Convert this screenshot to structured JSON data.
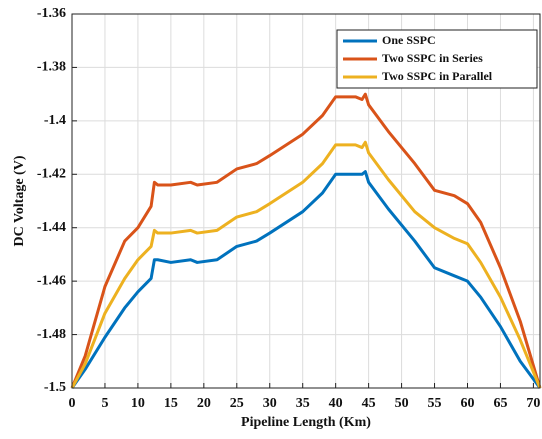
{
  "chart_data": {
    "type": "line",
    "xlabel": "Pipeline Length (Km)",
    "ylabel": "DC Voltage (V)",
    "x": [
      0,
      2,
      5,
      8,
      10,
      12,
      12.5,
      13,
      15,
      18,
      19,
      22,
      25,
      28,
      30,
      35,
      38,
      40,
      43,
      44,
      44.5,
      45,
      48,
      52,
      55,
      58,
      60,
      62,
      65,
      68,
      71
    ],
    "series": [
      {
        "name": "One SSPC",
        "color": "#0072BD",
        "values": [
          -1.5,
          -1.493,
          -1.481,
          -1.47,
          -1.464,
          -1.459,
          -1.452,
          -1.452,
          -1.453,
          -1.452,
          -1.453,
          -1.452,
          -1.447,
          -1.445,
          -1.442,
          -1.434,
          -1.427,
          -1.42,
          -1.42,
          -1.42,
          -1.419,
          -1.423,
          -1.433,
          -1.445,
          -1.455,
          -1.458,
          -1.46,
          -1.466,
          -1.477,
          -1.49,
          -1.5
        ]
      },
      {
        "name": "Two SSPC in Series",
        "color": "#D95319",
        "values": [
          -1.5,
          -1.488,
          -1.462,
          -1.445,
          -1.44,
          -1.432,
          -1.423,
          -1.424,
          -1.424,
          -1.423,
          -1.424,
          -1.423,
          -1.418,
          -1.416,
          -1.413,
          -1.405,
          -1.398,
          -1.391,
          -1.391,
          -1.392,
          -1.39,
          -1.394,
          -1.404,
          -1.416,
          -1.426,
          -1.428,
          -1.431,
          -1.438,
          -1.455,
          -1.475,
          -1.5
        ]
      },
      {
        "name": "Two SSPC in Parallel",
        "color": "#EDB120",
        "values": [
          -1.5,
          -1.491,
          -1.472,
          -1.459,
          -1.452,
          -1.447,
          -1.441,
          -1.442,
          -1.442,
          -1.441,
          -1.442,
          -1.441,
          -1.436,
          -1.434,
          -1.431,
          -1.423,
          -1.416,
          -1.409,
          -1.409,
          -1.41,
          -1.408,
          -1.412,
          -1.422,
          -1.434,
          -1.44,
          -1.444,
          -1.446,
          -1.453,
          -1.466,
          -1.482,
          -1.5
        ]
      }
    ],
    "xlim": [
      0,
      71
    ],
    "xticks": [
      0,
      5,
      10,
      15,
      20,
      25,
      30,
      35,
      40,
      45,
      50,
      55,
      60,
      65,
      70
    ],
    "ylim": [
      -1.5,
      -1.36
    ],
    "yticks": [
      -1.5,
      -1.48,
      -1.46,
      -1.44,
      -1.42,
      -1.4,
      -1.38,
      -1.36
    ],
    "grid": true,
    "legend": "upper right"
  }
}
